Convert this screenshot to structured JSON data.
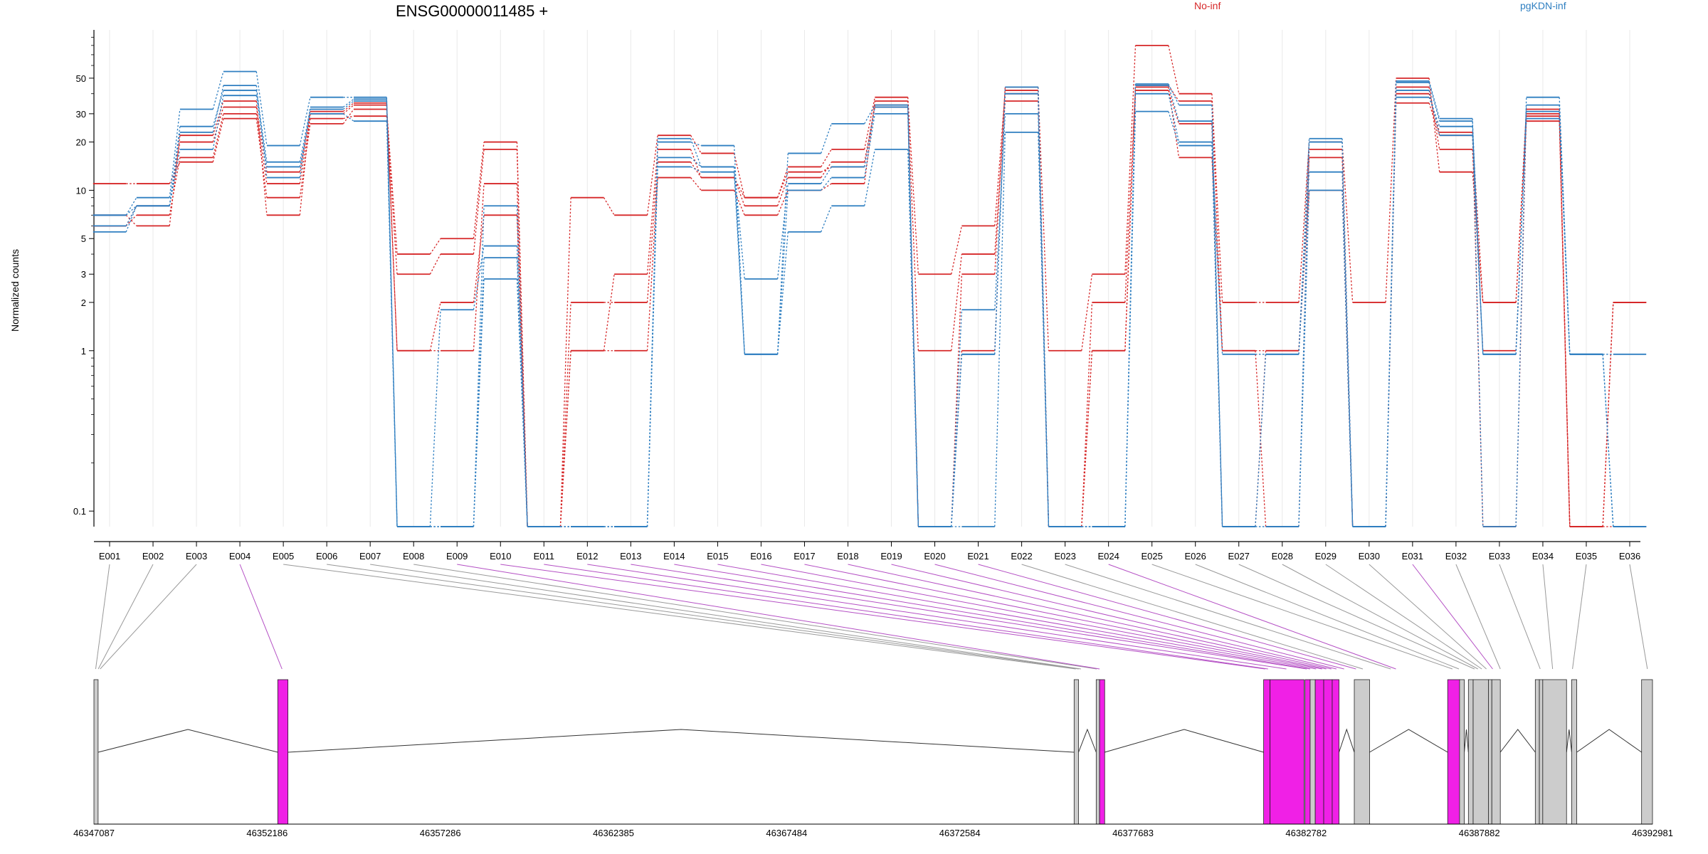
{
  "chart_data": {
    "type": "line",
    "title": "ENSG00000011485 +",
    "ylabel": "Normalized counts",
    "yscale": "log",
    "ylim": [
      0.08,
      100
    ],
    "yticks": [
      0.1,
      1,
      2,
      3,
      5,
      10,
      20,
      30,
      50
    ],
    "ytick_labels": [
      "0.1",
      "1",
      "2",
      "3",
      "5",
      "10",
      "20",
      "30",
      "50"
    ],
    "categories": [
      "E001",
      "E002",
      "E003",
      "E004",
      "E005",
      "E006",
      "E007",
      "E008",
      "E009",
      "E010",
      "E011",
      "E012",
      "E013",
      "E014",
      "E015",
      "E016",
      "E017",
      "E018",
      "E019",
      "E020",
      "E021",
      "E022",
      "E023",
      "E024",
      "E025",
      "E026",
      "E027",
      "E028",
      "E029",
      "E030",
      "E031",
      "E032",
      "E033",
      "E034",
      "E035",
      "E036"
    ],
    "legend": [
      {
        "name": "No-inf",
        "color": "#d62728"
      },
      {
        "name": "pgKDN-inf",
        "color": "#2f7fc1"
      }
    ],
    "series": [
      {
        "group": "No-inf",
        "color": "#d62728",
        "values": [
          11,
          11,
          15,
          28,
          9,
          26,
          32,
          4,
          5,
          20,
          0.08,
          9,
          7,
          22,
          17,
          9,
          14,
          18,
          38,
          3,
          6,
          42,
          1,
          3,
          80,
          40,
          2,
          2,
          20,
          2,
          50,
          13,
          2,
          27,
          0.08,
          2
        ]
      },
      {
        "group": "No-inf",
        "color": "#d62728",
        "values": [
          6,
          7,
          16,
          30,
          11,
          28,
          29,
          3,
          4,
          18,
          0.08,
          2,
          2,
          15,
          12,
          8,
          12,
          15,
          33,
          1,
          4,
          36,
          0.08,
          2,
          45,
          36,
          1,
          1,
          16,
          0.08,
          44,
          18,
          1,
          29,
          0.08,
          2
        ]
      },
      {
        "group": "No-inf",
        "color": "#d62728",
        "values": [
          6,
          8,
          20,
          33,
          13,
          30,
          34,
          1,
          1,
          11,
          0.08,
          1,
          1,
          12,
          10,
          7,
          10,
          11,
          36,
          0.08,
          1,
          40,
          0.08,
          1,
          42,
          26,
          0.08,
          1,
          10,
          0.08,
          40,
          23,
          0.08,
          30,
          0.08,
          0.08
        ]
      },
      {
        "group": "No-inf",
        "color": "#d62728",
        "values": [
          7,
          6,
          22,
          36,
          7,
          31,
          35,
          1,
          2,
          7,
          0.08,
          1,
          3,
          18,
          12,
          9,
          13,
          14,
          34,
          0.08,
          3,
          44,
          0.08,
          1,
          44,
          16,
          1,
          0.08,
          18,
          0.08,
          35,
          22,
          2,
          32,
          0.08,
          2
        ]
      },
      {
        "group": "pgKDN-inf",
        "color": "#2f7fc1",
        "values": [
          7,
          9,
          32,
          55,
          19,
          38,
          38,
          0.08,
          0.08,
          8,
          0.08,
          0.08,
          0.08,
          20,
          19,
          0.95,
          17,
          26,
          34,
          0.08,
          0.95,
          44,
          0.08,
          0.08,
          46,
          34,
          0.08,
          0.08,
          20,
          0.08,
          48,
          28,
          0.08,
          38,
          0.95,
          0.95
        ]
      },
      {
        "group": "pgKDN-inf",
        "color": "#2f7fc1",
        "values": [
          5.5,
          8,
          25,
          42,
          15,
          32,
          36,
          0.08,
          1.8,
          4.5,
          0.08,
          0.08,
          0.08,
          21,
          14,
          2.8,
          11,
          14,
          33,
          0.08,
          1.8,
          30,
          0.08,
          0.08,
          40,
          20,
          0.95,
          0.95,
          13,
          0.08,
          47,
          27,
          0.95,
          34,
          0.95,
          0.08
        ]
      },
      {
        "group": "pgKDN-inf",
        "color": "#2f7fc1",
        "values": [
          7,
          8,
          18,
          39,
          14,
          30,
          27,
          0.08,
          0.08,
          3.8,
          0.08,
          0.08,
          0.08,
          14,
          13,
          0.95,
          10,
          12,
          30,
          0.08,
          0.08,
          23,
          0.08,
          0.08,
          31,
          19,
          0.08,
          0.08,
          10,
          0.08,
          38,
          25,
          0.95,
          31,
          0.95,
          0.08
        ]
      },
      {
        "group": "pgKDN-inf",
        "color": "#2f7fc1",
        "values": [
          6,
          8,
          23,
          45,
          12,
          33,
          37,
          0.08,
          0.08,
          2.8,
          0.08,
          0.08,
          0.08,
          16,
          14,
          0.95,
          5.5,
          8,
          18,
          0.08,
          0.95,
          40,
          0.08,
          0.08,
          45,
          27,
          0.08,
          0.95,
          21,
          0.08,
          42,
          22,
          0.95,
          28,
          0.95,
          0.08
        ]
      }
    ],
    "genome_axis_labels": [
      "46347087",
      "46352186",
      "46357286",
      "46362385",
      "46367484",
      "46372584",
      "46377683",
      "46382782",
      "46387882",
      "46392981"
    ],
    "genome_range": [
      46347087,
      46392981
    ],
    "highlighted_exons": [
      "E004",
      "E009",
      "E010",
      "E011",
      "E012",
      "E013",
      "E014",
      "E015",
      "E016",
      "E017",
      "E018",
      "E019",
      "E020",
      "E021",
      "E024",
      "E031"
    ],
    "colors": {
      "highlight": "#f020e6",
      "exon_gray": "#cccccc",
      "connector_gray": "#999999",
      "connector_magenta": "#b44fc4"
    }
  }
}
